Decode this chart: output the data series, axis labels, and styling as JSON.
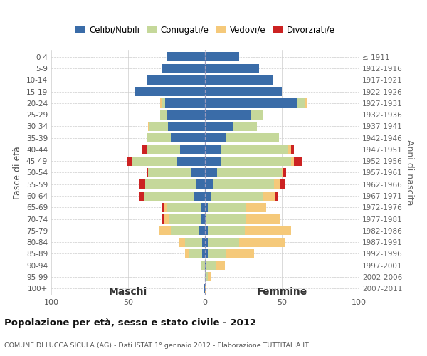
{
  "age_groups": [
    "100+",
    "95-99",
    "90-94",
    "85-89",
    "80-84",
    "75-79",
    "70-74",
    "65-69",
    "60-64",
    "55-59",
    "50-54",
    "45-49",
    "40-44",
    "35-39",
    "30-34",
    "25-29",
    "20-24",
    "15-19",
    "10-14",
    "5-9",
    "0-4"
  ],
  "birth_years": [
    "≤ 1911",
    "1912-1916",
    "1917-1921",
    "1922-1926",
    "1927-1931",
    "1932-1936",
    "1937-1941",
    "1942-1946",
    "1947-1951",
    "1952-1956",
    "1957-1961",
    "1962-1966",
    "1967-1971",
    "1972-1976",
    "1977-1981",
    "1982-1986",
    "1987-1991",
    "1992-1996",
    "1997-2001",
    "2002-2006",
    "2007-2011"
  ],
  "colors": {
    "celibi": "#3a6ca8",
    "coniugati": "#c5d89a",
    "vedovi": "#f5c97a",
    "divorziati": "#cc2222"
  },
  "maschi": {
    "celibi": [
      1,
      0,
      0,
      2,
      2,
      4,
      3,
      3,
      7,
      6,
      9,
      18,
      16,
      22,
      24,
      25,
      26,
      46,
      38,
      28,
      25
    ],
    "coniugati": [
      0,
      0,
      3,
      8,
      11,
      18,
      20,
      22,
      33,
      33,
      28,
      29,
      22,
      16,
      12,
      4,
      2,
      0,
      0,
      0,
      0
    ],
    "vedovi": [
      0,
      0,
      0,
      3,
      4,
      8,
      4,
      2,
      0,
      0,
      0,
      0,
      0,
      0,
      1,
      0,
      1,
      0,
      0,
      0,
      0
    ],
    "divorziati": [
      0,
      0,
      0,
      0,
      0,
      0,
      1,
      1,
      3,
      4,
      1,
      4,
      3,
      0,
      0,
      0,
      0,
      0,
      0,
      0,
      0
    ]
  },
  "femmine": {
    "celibi": [
      0,
      0,
      1,
      2,
      2,
      2,
      1,
      2,
      4,
      5,
      8,
      10,
      10,
      14,
      18,
      30,
      60,
      50,
      44,
      35,
      22
    ],
    "coniugati": [
      0,
      2,
      6,
      12,
      20,
      24,
      26,
      25,
      34,
      40,
      42,
      46,
      44,
      34,
      16,
      8,
      5,
      0,
      0,
      0,
      0
    ],
    "vedovi": [
      1,
      2,
      6,
      18,
      30,
      30,
      22,
      13,
      8,
      4,
      1,
      2,
      2,
      0,
      0,
      0,
      1,
      0,
      0,
      0,
      0
    ],
    "divorziati": [
      0,
      0,
      0,
      0,
      0,
      0,
      0,
      0,
      1,
      3,
      2,
      5,
      2,
      0,
      0,
      0,
      0,
      0,
      0,
      0,
      0
    ]
  },
  "title": "Popolazione per età, sesso e stato civile - 2012",
  "subtitle": "COMUNE DI LUCCA SICULA (AG) - Dati ISTAT 1° gennaio 2012 - Elaborazione TUTTITALIA.IT",
  "xlabel_left": "Maschi",
  "xlabel_right": "Femmine",
  "ylabel_left": "Fasce di età",
  "ylabel_right": "Anni di nascita",
  "xlim": 100,
  "legend_labels": [
    "Celibi/Nubili",
    "Coniugati/e",
    "Vedovi/e",
    "Divorziati/e"
  ]
}
